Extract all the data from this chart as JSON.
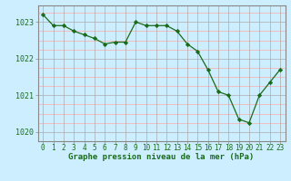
{
  "x": [
    0,
    1,
    2,
    3,
    4,
    5,
    6,
    7,
    8,
    9,
    10,
    11,
    12,
    13,
    14,
    15,
    16,
    17,
    18,
    19,
    20,
    21,
    22,
    23
  ],
  "y": [
    1023.2,
    1022.9,
    1022.9,
    1022.75,
    1022.65,
    1022.55,
    1022.4,
    1022.45,
    1022.45,
    1023.0,
    1022.9,
    1022.9,
    1022.9,
    1022.75,
    1022.4,
    1022.2,
    1021.7,
    1021.1,
    1021.0,
    1020.35,
    1020.25,
    1021.0,
    1021.35,
    1021.7
  ],
  "line_color": "#1a6b1a",
  "marker_color": "#1a6b1a",
  "bg_color": "#cceeff",
  "plot_bg_color": "#cceeff",
  "grid_v_color": "#aaaaaa",
  "grid_h_major_color": "#aaaaaa",
  "grid_h_minor_color": "#ffaaaa",
  "xlabel": "Graphe pression niveau de la mer (hPa)",
  "xlabel_color": "#1a6b1a",
  "xlabel_fontsize": 6.5,
  "tick_label_color": "#1a6b1a",
  "tick_fontsize": 6.0,
  "ylim": [
    1019.75,
    1023.45
  ],
  "yticks": [
    1020,
    1021,
    1022,
    1023
  ],
  "xticks": [
    0,
    1,
    2,
    3,
    4,
    5,
    6,
    7,
    8,
    9,
    10,
    11,
    12,
    13,
    14,
    15,
    16,
    17,
    18,
    19,
    20,
    21,
    22,
    23
  ],
  "border_color": "#888888"
}
